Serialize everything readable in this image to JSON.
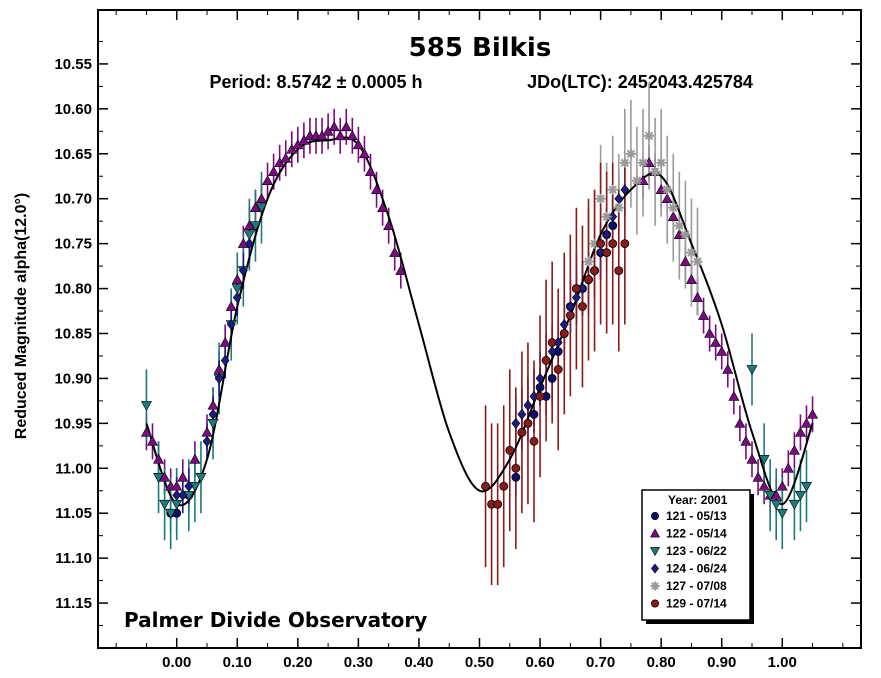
{
  "chart_data": {
    "type": "scatter",
    "title": "585 Bilkis",
    "subtitle_period": "Period: 8.5742 ± 0.0005 h",
    "subtitle_jdo": "JDo(LTC): 2452043.425784",
    "ylabel": "Reduced Magnitude alpha(12.0°)",
    "xlabel": "",
    "xlim": [
      -0.13,
      1.13
    ],
    "ylim": [
      11.2,
      10.49
    ],
    "y_inverted": true,
    "x_ticks": [
      0.0,
      0.1,
      0.2,
      0.3,
      0.4,
      0.5,
      0.6,
      0.7,
      0.8,
      0.9,
      1.0
    ],
    "x_tick_labels": [
      "0.00",
      "0.10",
      "0.20",
      "0.30",
      "0.40",
      "0.50",
      "0.60",
      "0.70",
      "0.80",
      "0.90",
      "1.00"
    ],
    "y_ticks": [
      10.55,
      10.6,
      10.65,
      10.7,
      10.75,
      10.8,
      10.85,
      10.9,
      10.95,
      11.0,
      11.05,
      11.1,
      11.15
    ],
    "y_tick_labels": [
      "10.55",
      "10.60",
      "10.65",
      "10.70",
      "10.75",
      "10.80",
      "10.85",
      "10.90",
      "10.95",
      "11.00",
      "11.05",
      "11.10",
      "11.15"
    ],
    "annotation": "Palmer Divide Observatory",
    "grid": false,
    "legend": {
      "title": "Year: 2001",
      "placement": "bottom-right"
    },
    "fit_curve": {
      "x": [
        -0.05,
        0.0,
        0.05,
        0.1,
        0.15,
        0.2,
        0.25,
        0.3,
        0.35,
        0.4,
        0.45,
        0.5,
        0.55,
        0.6,
        0.65,
        0.7,
        0.75,
        0.8,
        0.85,
        0.9,
        0.95,
        1.0,
        1.05
      ],
      "y": [
        10.95,
        11.04,
        10.99,
        10.82,
        10.7,
        10.645,
        10.635,
        10.64,
        10.72,
        10.84,
        10.96,
        11.025,
        10.99,
        10.91,
        10.83,
        10.74,
        10.69,
        10.675,
        10.75,
        10.84,
        10.96,
        11.04,
        10.95
      ]
    },
    "series": [
      {
        "name": "121 - 05/13",
        "color": "#0c0c6e",
        "marker": "circle",
        "x": [
          -0.01,
          0.0,
          0.02,
          0.56,
          0.57,
          0.58,
          0.59,
          0.6,
          0.61,
          0.62,
          0.63,
          0.64,
          0.65,
          0.66,
          0.67,
          0.68,
          0.69,
          0.7,
          0.71,
          0.72
        ],
        "y": [
          11.05,
          11.05,
          11.03,
          11.01,
          10.96,
          10.95,
          10.94,
          10.91,
          10.92,
          10.9,
          10.87,
          10.85,
          10.82,
          10.8,
          10.8,
          10.79,
          10.78,
          10.76,
          10.74,
          10.73
        ],
        "err": [
          0.02,
          0.02,
          0.02,
          0.02,
          0.02,
          0.02,
          0.02,
          0.02,
          0.02,
          0.03,
          0.03,
          0.03,
          0.03,
          0.04,
          0.03,
          0.03,
          0.03,
          0.03,
          0.03,
          0.03
        ]
      },
      {
        "name": "122 - 05/14",
        "color": "#7b0a82",
        "marker": "triangle-up",
        "x": [
          -0.05,
          -0.04,
          -0.03,
          -0.02,
          -0.01,
          0.0,
          0.01,
          0.03,
          0.05,
          0.06,
          0.07,
          0.08,
          0.09,
          0.1,
          0.11,
          0.12,
          0.13,
          0.14,
          0.15,
          0.16,
          0.17,
          0.18,
          0.19,
          0.2,
          0.21,
          0.22,
          0.23,
          0.24,
          0.25,
          0.26,
          0.27,
          0.28,
          0.29,
          0.3,
          0.31,
          0.32,
          0.33,
          0.34,
          0.35,
          0.36,
          0.37,
          0.77,
          0.78,
          0.79,
          0.8,
          0.81,
          0.82,
          0.83,
          0.84,
          0.85,
          0.86,
          0.87,
          0.88,
          0.89,
          0.9,
          0.91,
          0.92,
          0.93,
          0.94,
          0.95,
          0.96,
          0.97,
          0.98,
          0.99,
          1.0,
          1.01,
          1.02,
          1.03,
          1.04,
          1.05
        ],
        "y": [
          10.96,
          10.97,
          10.99,
          11.01,
          11.02,
          11.02,
          11.01,
          10.99,
          10.96,
          10.93,
          10.89,
          10.86,
          10.82,
          10.79,
          10.75,
          10.73,
          10.71,
          10.7,
          10.68,
          10.67,
          10.66,
          10.655,
          10.645,
          10.64,
          10.635,
          10.63,
          10.63,
          10.63,
          10.625,
          10.62,
          10.63,
          10.62,
          10.63,
          10.64,
          10.65,
          10.67,
          10.69,
          10.71,
          10.73,
          10.76,
          10.78,
          10.68,
          10.66,
          10.67,
          10.69,
          10.7,
          10.72,
          10.74,
          10.77,
          10.79,
          10.81,
          10.83,
          10.85,
          10.86,
          10.87,
          10.89,
          10.92,
          10.95,
          10.97,
          10.99,
          11.01,
          11.02,
          11.03,
          11.03,
          11.02,
          11.0,
          10.98,
          10.96,
          10.95,
          10.94
        ],
        "err": [
          0.02,
          0.02,
          0.02,
          0.02,
          0.02,
          0.02,
          0.02,
          0.02,
          0.02,
          0.02,
          0.02,
          0.02,
          0.02,
          0.02,
          0.02,
          0.02,
          0.02,
          0.02,
          0.02,
          0.02,
          0.02,
          0.02,
          0.02,
          0.02,
          0.02,
          0.02,
          0.02,
          0.02,
          0.02,
          0.02,
          0.02,
          0.02,
          0.02,
          0.02,
          0.02,
          0.02,
          0.02,
          0.02,
          0.02,
          0.02,
          0.02,
          0.02,
          0.02,
          0.02,
          0.02,
          0.02,
          0.02,
          0.02,
          0.02,
          0.02,
          0.02,
          0.02,
          0.02,
          0.02,
          0.02,
          0.02,
          0.02,
          0.02,
          0.02,
          0.02,
          0.02,
          0.02,
          0.02,
          0.02,
          0.02,
          0.02,
          0.02,
          0.02,
          0.02,
          0.02
        ]
      },
      {
        "name": "123 - 06/22",
        "color": "#1d7a7a",
        "marker": "triangle-down",
        "x": [
          -0.05,
          -0.03,
          -0.02,
          -0.01,
          0.0,
          0.02,
          0.03,
          0.04,
          0.06,
          0.07,
          0.09,
          0.1,
          0.11,
          0.12,
          0.13,
          0.14,
          0.95,
          0.97,
          0.98,
          0.99,
          1.0,
          1.02,
          1.03,
          1.04
        ],
        "y": [
          10.93,
          11.01,
          11.04,
          11.05,
          11.04,
          11.03,
          11.02,
          11.01,
          10.95,
          10.9,
          10.84,
          10.8,
          10.78,
          10.74,
          10.73,
          10.71,
          10.89,
          10.99,
          11.03,
          11.04,
          11.05,
          11.04,
          11.03,
          11.02
        ],
        "err": [
          0.04,
          0.04,
          0.04,
          0.04,
          0.04,
          0.04,
          0.04,
          0.04,
          0.04,
          0.04,
          0.04,
          0.04,
          0.04,
          0.04,
          0.04,
          0.04,
          0.04,
          0.04,
          0.04,
          0.04,
          0.04,
          0.04,
          0.04,
          0.04
        ]
      },
      {
        "name": "124 - 06/24",
        "color": "#1a1a8a",
        "marker": "diamond",
        "x": [
          0.0,
          0.01,
          0.02,
          0.05,
          0.06,
          0.07,
          0.08,
          0.09,
          0.1,
          0.11,
          0.12,
          0.56,
          0.57,
          0.58,
          0.59,
          0.6,
          0.61,
          0.62,
          0.63,
          0.64,
          0.65,
          0.66,
          0.67,
          0.68,
          0.69,
          0.7,
          0.71,
          0.72,
          0.73,
          0.74
        ],
        "y": [
          11.03,
          11.03,
          11.02,
          10.97,
          10.94,
          10.9,
          10.88,
          10.84,
          10.81,
          10.78,
          10.75,
          10.95,
          10.94,
          10.93,
          10.92,
          10.9,
          10.88,
          10.87,
          10.86,
          10.84,
          10.82,
          10.81,
          10.8,
          10.79,
          10.78,
          10.76,
          10.74,
          10.72,
          10.7,
          10.69
        ],
        "err": [
          0.02,
          0.02,
          0.02,
          0.02,
          0.02,
          0.02,
          0.02,
          0.02,
          0.02,
          0.02,
          0.02,
          0.03,
          0.03,
          0.03,
          0.03,
          0.03,
          0.03,
          0.03,
          0.03,
          0.03,
          0.03,
          0.03,
          0.03,
          0.03,
          0.03,
          0.03,
          0.03,
          0.03,
          0.03,
          0.03
        ]
      },
      {
        "name": "127 - 07/08",
        "color": "#9a9a9a",
        "marker": "asterisk",
        "x": [
          0.68,
          0.69,
          0.7,
          0.71,
          0.72,
          0.73,
          0.74,
          0.75,
          0.76,
          0.77,
          0.78,
          0.79,
          0.8,
          0.81,
          0.82,
          0.83,
          0.84,
          0.85,
          0.86
        ],
        "y": [
          10.77,
          10.75,
          10.7,
          10.72,
          10.69,
          10.71,
          10.66,
          10.65,
          10.68,
          10.66,
          10.63,
          10.67,
          10.66,
          10.69,
          10.71,
          10.73,
          10.74,
          10.76,
          10.77
        ],
        "err": [
          0.06,
          0.06,
          0.06,
          0.06,
          0.06,
          0.06,
          0.06,
          0.06,
          0.06,
          0.06,
          0.06,
          0.06,
          0.06,
          0.06,
          0.06,
          0.06,
          0.06,
          0.06,
          0.06
        ]
      },
      {
        "name": "129 - 07/14",
        "color": "#8b1a1a",
        "marker": "circle",
        "x": [
          0.51,
          0.52,
          0.53,
          0.54,
          0.55,
          0.56,
          0.57,
          0.58,
          0.59,
          0.6,
          0.61,
          0.62,
          0.63,
          0.64,
          0.65,
          0.66,
          0.67,
          0.68,
          0.69,
          0.7,
          0.71,
          0.72,
          0.73,
          0.74
        ],
        "y": [
          11.02,
          11.04,
          11.04,
          11.02,
          10.98,
          11.0,
          10.96,
          10.95,
          10.97,
          10.92,
          10.88,
          10.86,
          10.89,
          10.85,
          10.83,
          10.8,
          10.82,
          10.79,
          10.78,
          10.75,
          10.76,
          10.75,
          10.78,
          10.75
        ],
        "err": [
          0.09,
          0.09,
          0.09,
          0.09,
          0.09,
          0.09,
          0.09,
          0.09,
          0.09,
          0.09,
          0.09,
          0.09,
          0.09,
          0.09,
          0.09,
          0.09,
          0.09,
          0.09,
          0.09,
          0.09,
          0.09,
          0.09,
          0.09,
          0.09
        ]
      }
    ]
  }
}
